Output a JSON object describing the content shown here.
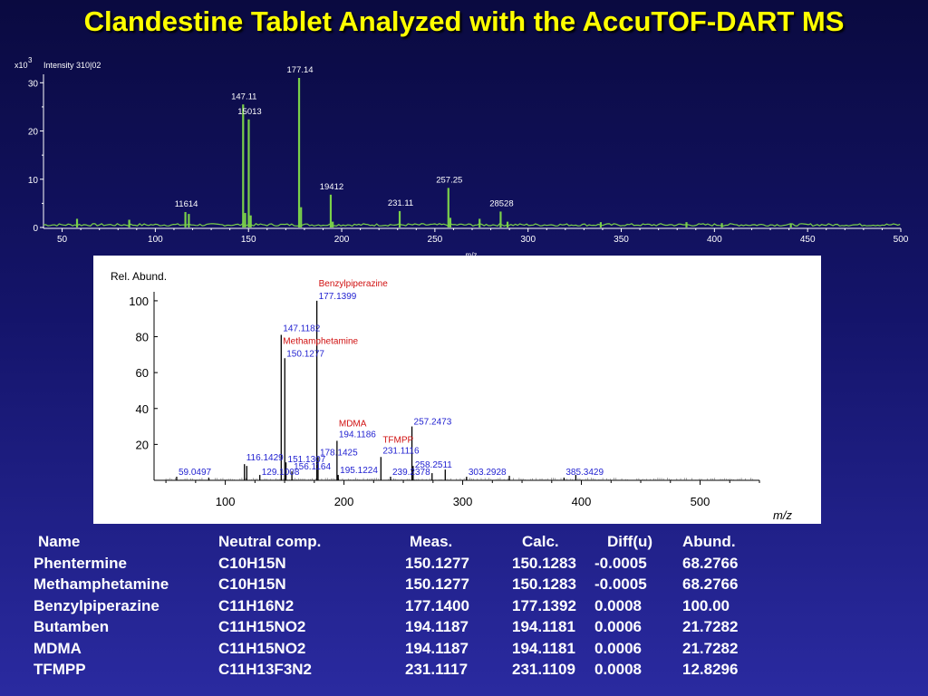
{
  "title": "Clandestine Tablet Analyzed with the AccuTOF-DART MS",
  "chart_data": [
    {
      "type": "line",
      "y_exponent_label": "x10",
      "y_exponent": "3",
      "intensity_label": "Intensity 310|02",
      "xlabel": "m/z",
      "xlim": [
        40,
        500
      ],
      "ylim": [
        0,
        31
      ],
      "x_ticks": [
        50,
        100,
        150,
        200,
        250,
        300,
        350,
        400,
        450,
        500
      ],
      "y_ticks": [
        0,
        10,
        20,
        30
      ],
      "line_color": "#7ad04a",
      "peaks": [
        {
          "mz": 58,
          "intensity": 1.8
        },
        {
          "mz": 86,
          "intensity": 1.6
        },
        {
          "mz": 116.14,
          "intensity": 3.2,
          "label": "11614"
        },
        {
          "mz": 118,
          "intensity": 2.8
        },
        {
          "mz": 147.11,
          "intensity": 25.5,
          "label": "147.11"
        },
        {
          "mz": 148.2,
          "intensity": 3.0
        },
        {
          "mz": 150.13,
          "intensity": 22.4,
          "label": "15013"
        },
        {
          "mz": 151.2,
          "intensity": 2.5
        },
        {
          "mz": 177.14,
          "intensity": 31.0,
          "label": "177.14"
        },
        {
          "mz": 178.2,
          "intensity": 4.2
        },
        {
          "mz": 194.12,
          "intensity": 6.8,
          "label": "19412"
        },
        {
          "mz": 195.2,
          "intensity": 1.2
        },
        {
          "mz": 231.11,
          "intensity": 3.4,
          "label": "231.11"
        },
        {
          "mz": 257.25,
          "intensity": 8.2,
          "label": "257.25"
        },
        {
          "mz": 258.3,
          "intensity": 2.0
        },
        {
          "mz": 274,
          "intensity": 1.8
        },
        {
          "mz": 285.28,
          "intensity": 3.3,
          "label": "28528"
        },
        {
          "mz": 289,
          "intensity": 1.2
        },
        {
          "mz": 339,
          "intensity": 1.1
        },
        {
          "mz": 385,
          "intensity": 1.1
        },
        {
          "mz": 404,
          "intensity": 0.9
        },
        {
          "mz": 441,
          "intensity": 0.8
        }
      ]
    },
    {
      "type": "line",
      "ylabel": "Rel. Abund.",
      "xlabel": "m/z",
      "xlim": [
        40,
        550
      ],
      "ylim": [
        0,
        105
      ],
      "x_ticks": [
        100,
        200,
        300,
        400,
        500
      ],
      "y_ticks": [
        20,
        40,
        60,
        80,
        100
      ],
      "line_color": "#000000",
      "peaks": [
        {
          "mz": 59.0497,
          "abund": 2
        },
        {
          "mz": 86.1,
          "abund": 1.5
        },
        {
          "mz": 116.1429,
          "abund": 9
        },
        {
          "mz": 118.1,
          "abund": 8
        },
        {
          "mz": 129.1008,
          "abund": 3
        },
        {
          "mz": 147.1182,
          "abund": 81
        },
        {
          "mz": 150.1277,
          "abund": 68
        },
        {
          "mz": 151.1307,
          "abund": 10
        },
        {
          "mz": 156.1164,
          "abund": 5
        },
        {
          "mz": 177.1399,
          "abund": 100
        },
        {
          "mz": 178.1425,
          "abund": 13
        },
        {
          "mz": 194.1186,
          "abund": 22
        },
        {
          "mz": 195.1224,
          "abund": 3
        },
        {
          "mz": 231.1116,
          "abund": 13
        },
        {
          "mz": 239.2378,
          "abund": 2
        },
        {
          "mz": 257.2473,
          "abund": 30
        },
        {
          "mz": 258.2511,
          "abund": 8
        },
        {
          "mz": 274.2,
          "abund": 4
        },
        {
          "mz": 285.3,
          "abund": 6
        },
        {
          "mz": 303.2928,
          "abund": 2
        },
        {
          "mz": 339.3,
          "abund": 2.5
        },
        {
          "mz": 385.3429,
          "abund": 1.5
        },
        {
          "mz": 395.3,
          "abund": 3
        }
      ],
      "labels": [
        {
          "mz": 59.0497,
          "y": 3,
          "text": "59.0497",
          "color": "#1f1fd0"
        },
        {
          "mz": 116.1429,
          "y": 11,
          "text": "116.1429",
          "color": "#1f1fd0"
        },
        {
          "mz": 129.1008,
          "y": 3,
          "text": "129.1008",
          "color": "#1f1fd0"
        },
        {
          "mz": 147.1182,
          "y": 83,
          "text": "147.1182",
          "color": "#1f1fd0"
        },
        {
          "mz": 147.1182,
          "y": 76,
          "text": "Methamphetamine",
          "color": "#d01010"
        },
        {
          "mz": 150.1277,
          "y": 69,
          "text": "150.1277",
          "color": "#1f1fd0"
        },
        {
          "mz": 151.1307,
          "y": 10,
          "text": "151.1307",
          "color": "#1f1fd0"
        },
        {
          "mz": 156.1164,
          "y": 6,
          "text": "156.1164",
          "color": "#1f1fd0"
        },
        {
          "mz": 177.1399,
          "y": 108,
          "text": "Benzylpiperazine",
          "color": "#d01010"
        },
        {
          "mz": 177.1399,
          "y": 101,
          "text": "177.1399",
          "color": "#1f1fd0"
        },
        {
          "mz": 178.1425,
          "y": 14,
          "text": "178.1425",
          "color": "#1f1fd0"
        },
        {
          "mz": 194.1186,
          "y": 30,
          "text": "MDMA",
          "color": "#d01010"
        },
        {
          "mz": 194.1186,
          "y": 24,
          "text": "194.1186",
          "color": "#1f1fd0"
        },
        {
          "mz": 195.1224,
          "y": 4,
          "text": "195.1224",
          "color": "#1f1fd0"
        },
        {
          "mz": 231.1116,
          "y": 21,
          "text": "TFMPP",
          "color": "#d01010"
        },
        {
          "mz": 231.1116,
          "y": 15,
          "text": "231.1116",
          "color": "#1f1fd0"
        },
        {
          "mz": 239.2378,
          "y": 3,
          "text": "239.2378",
          "color": "#1f1fd0"
        },
        {
          "mz": 257.2473,
          "y": 31,
          "text": "257.2473",
          "color": "#1f1fd0"
        },
        {
          "mz": 258.2511,
          "y": 7,
          "text": "258.2511",
          "color": "#1f1fd0"
        },
        {
          "mz": 303.2928,
          "y": 3,
          "text": "303.2928",
          "color": "#1f1fd0"
        },
        {
          "mz": 385.3429,
          "y": 3,
          "text": "385.3429",
          "color": "#1f1fd0"
        }
      ]
    }
  ],
  "table": {
    "headers": [
      "Name",
      "Neutral comp.",
      "Meas.",
      "Calc.",
      "Diff(u)",
      "Abund."
    ],
    "rows": [
      [
        "Phentermine",
        "C10H15N",
        "150.1277",
        "150.1283",
        "-0.0005",
        "68.2766"
      ],
      [
        "Methamphetamine",
        "C10H15N",
        "150.1277",
        "150.1283",
        "-0.0005",
        "68.2766"
      ],
      [
        "Benzylpiperazine",
        "C11H16N2",
        "177.1400",
        "177.1392",
        "0.0008",
        "100.00"
      ],
      [
        "Butamben",
        "C11H15NO2",
        "194.1187",
        "194.1181",
        "0.0006",
        "21.7282"
      ],
      [
        "MDMA",
        "C11H15NO2",
        "194.1187",
        "194.1181",
        "0.0006",
        "21.7282"
      ],
      [
        "TFMPP",
        "C11H13F3N2",
        "231.1117",
        "231.1109",
        "0.0008",
        "12.8296"
      ]
    ]
  }
}
